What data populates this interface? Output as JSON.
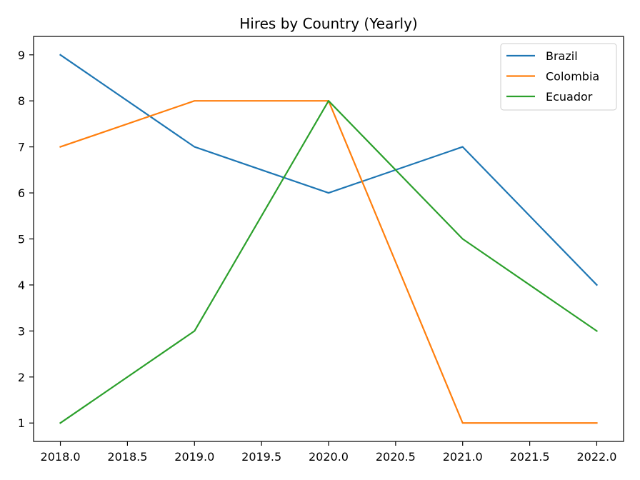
{
  "chart_data": {
    "type": "line",
    "title": "Hires by Country (Yearly)",
    "xlabel": "",
    "ylabel": "",
    "x": [
      2018,
      2019,
      2020,
      2021,
      2022
    ],
    "x_ticks": [
      2018.0,
      2018.5,
      2019.0,
      2019.5,
      2020.0,
      2020.5,
      2021.0,
      2021.5,
      2022.0
    ],
    "x_tick_labels": [
      "2018.0",
      "2018.5",
      "2019.0",
      "2019.5",
      "2020.0",
      "2020.5",
      "2021.0",
      "2021.5",
      "2022.0"
    ],
    "y_ticks": [
      1,
      2,
      3,
      4,
      5,
      6,
      7,
      8,
      9
    ],
    "y_tick_labels": [
      "1",
      "2",
      "3",
      "4",
      "5",
      "6",
      "7",
      "8",
      "9"
    ],
    "xlim": [
      2017.8,
      2022.2
    ],
    "ylim": [
      0.6,
      9.4
    ],
    "grid": false,
    "legend_position": "top-right",
    "series": [
      {
        "name": "Brazil",
        "color": "#1f77b4",
        "values": [
          9,
          7,
          6,
          7,
          4
        ]
      },
      {
        "name": "Colombia",
        "color": "#ff7f0e",
        "values": [
          7,
          8,
          8,
          1,
          1
        ]
      },
      {
        "name": "Ecuador",
        "color": "#2ca02c",
        "values": [
          1,
          3,
          8,
          5,
          3
        ]
      }
    ]
  }
}
